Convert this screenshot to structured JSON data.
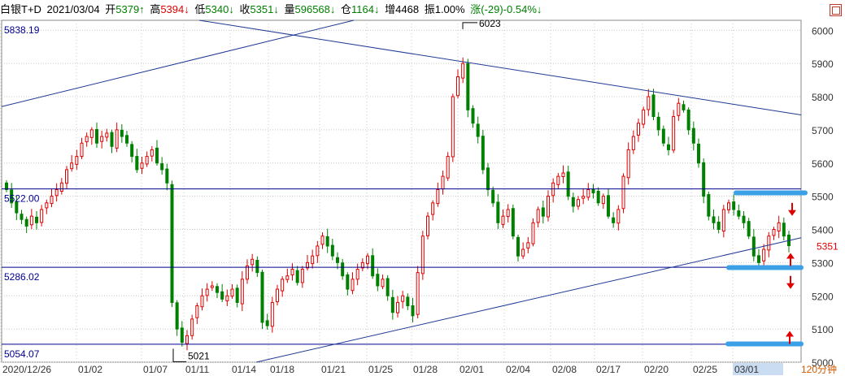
{
  "header": {
    "symbol": "白银T+D",
    "date": "2021/03/04",
    "open_label": "开",
    "open": "5379↑",
    "high_label": "高",
    "high": "5394↓",
    "low_label": "低",
    "low": "5340↓",
    "close_label": "收",
    "close": "5351↓",
    "volume_label": "量",
    "volume": "596568↓",
    "oi_label": "仓",
    "oi": "1164↓",
    "increase_label": "增",
    "increase": "4468",
    "amp_label": "振",
    "amp": "1.00%",
    "chg_label": "涨",
    "chg": "(-29)-0.54%↓"
  },
  "period_label": "120分钟",
  "colors": {
    "up": "#e00000",
    "down": "#008000",
    "line": "#1f3a93",
    "hline": "#00008b",
    "band": "#3ba0e6",
    "grid": "#c8c8c8",
    "arrow": "#e00000",
    "highlight": "#c9dcf2"
  },
  "chart_data": {
    "type": "candlestick",
    "ylim": [
      5000,
      6030
    ],
    "y_ticks": [
      5000,
      5100,
      5200,
      5300,
      5400,
      5500,
      5600,
      5700,
      5800,
      5900,
      6000
    ],
    "x_labels": [
      "2020/12/26",
      "01/02",
      "01/07",
      "01/11",
      "01/14",
      "01/18",
      "01/21",
      "01/25",
      "01/28",
      "02/01",
      "02/04",
      "02/08",
      "02/17",
      "02/20",
      "02/25",
      "03/01"
    ],
    "highlighted_label": "03/01",
    "price_levels": [
      {
        "label": "5522.00",
        "value": 5522
      },
      {
        "label": "5286.02",
        "value": 5286
      },
      {
        "label": "5054.07",
        "value": 5054
      }
    ],
    "top_level_label": "5838.19",
    "annotations": [
      {
        "text": "6023",
        "value": 6023
      },
      {
        "text": "5021",
        "value": 5021
      }
    ],
    "current_price": "5351",
    "support_bands": [
      5510,
      5285,
      5055
    ],
    "closes": [
      5520,
      5480,
      5450,
      5430,
      5410,
      5440,
      5420,
      5460,
      5480,
      5500,
      5520,
      5540,
      5580,
      5600,
      5620,
      5660,
      5680,
      5700,
      5660,
      5680,
      5690,
      5650,
      5700,
      5680,
      5660,
      5620,
      5580,
      5600,
      5620,
      5640,
      5600,
      5580,
      5540,
      5180,
      5100,
      5060,
      5080,
      5130,
      5170,
      5200,
      5220,
      5230,
      5210,
      5190,
      5200,
      5220,
      5180,
      5250,
      5290,
      5310,
      5270,
      5120,
      5110,
      5180,
      5220,
      5250,
      5260,
      5280,
      5240,
      5280,
      5300,
      5320,
      5350,
      5380,
      5350,
      5320,
      5300,
      5260,
      5220,
      5250,
      5280,
      5300,
      5320,
      5260,
      5230,
      5250,
      5200,
      5150,
      5180,
      5200,
      5170,
      5140,
      5270,
      5380,
      5440,
      5480,
      5520,
      5560,
      5620,
      5800,
      5860,
      5900,
      5760,
      5720,
      5680,
      5580,
      5520,
      5480,
      5420,
      5440,
      5460,
      5380,
      5320,
      5340,
      5360,
      5420,
      5460,
      5440,
      5500,
      5540,
      5560,
      5570,
      5500,
      5470,
      5490,
      5500,
      5520,
      5510,
      5480,
      5500,
      5440,
      5420,
      5460,
      5560,
      5640,
      5680,
      5720,
      5760,
      5800,
      5740,
      5700,
      5660,
      5640,
      5740,
      5780,
      5760,
      5700,
      5660,
      5600,
      5500,
      5440,
      5420,
      5400,
      5460,
      5480,
      5460,
      5440,
      5420,
      5380,
      5320,
      5300,
      5340,
      5380,
      5400,
      5420,
      5380,
      5351
    ]
  }
}
